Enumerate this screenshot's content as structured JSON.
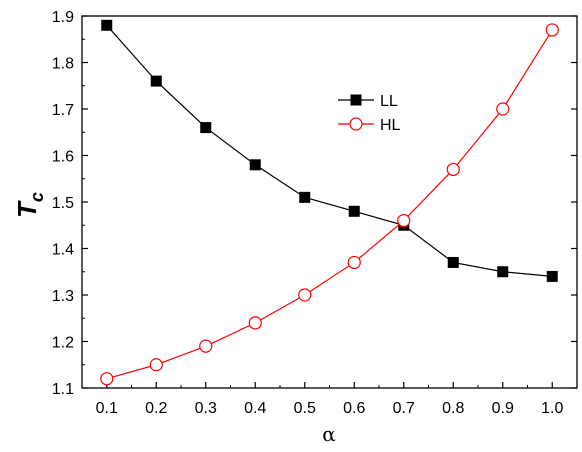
{
  "chart_data": {
    "type": "line",
    "xlabel": "α",
    "ylabel": {
      "main": "T",
      "sub": "c"
    },
    "xlim": [
      0.05,
      1.05
    ],
    "ylim": [
      1.1,
      1.9
    ],
    "x_ticks": [
      "0.1",
      "0.2",
      "0.3",
      "0.4",
      "0.5",
      "0.6",
      "0.7",
      "0.8",
      "0.9",
      "1.0"
    ],
    "y_ticks": [
      "1.1",
      "1.2",
      "1.3",
      "1.4",
      "1.5",
      "1.6",
      "1.7",
      "1.8",
      "1.9"
    ],
    "x": [
      0.1,
      0.2,
      0.3,
      0.4,
      0.5,
      0.6,
      0.7,
      0.8,
      0.9,
      1.0
    ],
    "series": [
      {
        "name": "LL",
        "color": "#000000",
        "marker": "filled-square",
        "values": [
          1.88,
          1.76,
          1.66,
          1.58,
          1.51,
          1.48,
          1.45,
          1.37,
          1.35,
          1.34
        ]
      },
      {
        "name": "HL",
        "color": "#ff0000",
        "marker": "open-circle",
        "values": [
          1.12,
          1.15,
          1.19,
          1.24,
          1.3,
          1.37,
          1.46,
          1.57,
          1.7,
          1.87
        ]
      }
    ],
    "grid": false,
    "legend_position": "upper-center"
  }
}
